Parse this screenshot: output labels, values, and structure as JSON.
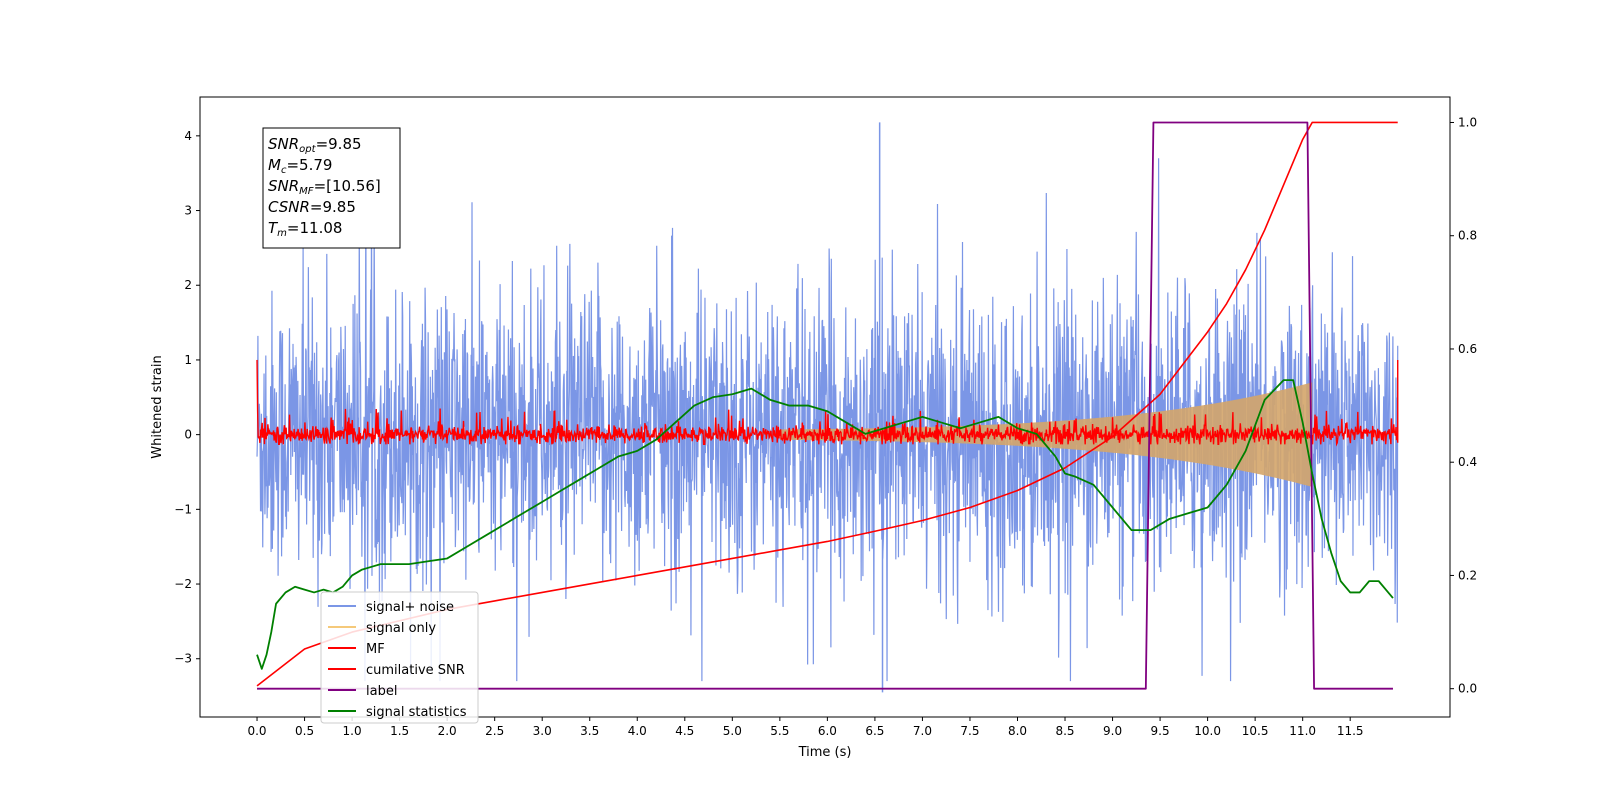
{
  "chart_data": {
    "type": "line",
    "xlabel": "Time (s)",
    "ylabel": "Whitened strain",
    "xlim": [
      -0.6,
      12.55
    ],
    "ylim": [
      -3.78,
      4.52
    ],
    "y2lim": [
      -0.05,
      1.045
    ],
    "x_ticks": [
      0.0,
      0.5,
      1.0,
      1.5,
      2.0,
      2.5,
      3.0,
      3.5,
      4.0,
      4.5,
      5.0,
      5.5,
      6.0,
      6.5,
      7.0,
      7.5,
      8.0,
      8.5,
      9.0,
      9.5,
      10.0,
      10.5,
      11.0,
      11.5
    ],
    "x_tick_labels": [
      "0.0",
      "0.5",
      "1.0",
      "1.5",
      "2.0",
      "2.5",
      "3.0",
      "3.5",
      "4.0",
      "4.5",
      "5.0",
      "5.5",
      "6.0",
      "6.5",
      "7.0",
      "7.5",
      "8.0",
      "8.5",
      "9.0",
      "9.5",
      "10.0",
      "10.5",
      "11.0",
      "11.5"
    ],
    "y_ticks": [
      -3,
      -2,
      -1,
      0,
      1,
      2,
      3,
      4
    ],
    "y_tick_labels": [
      "−3",
      "−2",
      "−1",
      "0",
      "1",
      "2",
      "3",
      "4"
    ],
    "y2_ticks": [
      0.0,
      0.2,
      0.4,
      0.6,
      0.8,
      1.0
    ],
    "y2_tick_labels": [
      "0.0",
      "0.2",
      "0.4",
      "0.6",
      "0.8",
      "1.0"
    ],
    "grid": false,
    "legend_position": "lower-left",
    "legend": [
      {
        "label": "signal+ noise",
        "color": "#7b96e6"
      },
      {
        "label": "signal only",
        "color": "#f5c97a"
      },
      {
        "label": "MF",
        "color": "#ff0000"
      },
      {
        "label": "cumilative SNR",
        "color": "#ff0000"
      },
      {
        "label": "label",
        "color": "#800080"
      },
      {
        "label": "signal statistics",
        "color": "#008000"
      }
    ],
    "annotation": {
      "lines": [
        {
          "base": "SNR",
          "sub": "opt",
          "value": "=9.85"
        },
        {
          "base": "M",
          "sub": "c",
          "value": "=5.79"
        },
        {
          "base": "SNR",
          "sub": "MF",
          "value": "=[10.56]"
        },
        {
          "base": "CSNR",
          "sub": "",
          "value": "=9.85"
        },
        {
          "base": "T",
          "sub": "m",
          "value": "=11.08"
        }
      ]
    },
    "series": [
      {
        "name": "signal+ noise",
        "axis": "left",
        "color": "#7b96e6",
        "t_range": [
          0.0,
          12.0
        ],
        "envelope": 1.4,
        "peak_extremes": [
          4.18,
          -3.45
        ]
      },
      {
        "name": "signal only",
        "axis": "left",
        "color": "#d4a56a",
        "t_range": [
          0.0,
          11.1
        ],
        "amplitude_start": 0.0,
        "amplitude_end": 0.7
      },
      {
        "name": "MF",
        "axis": "left",
        "color": "#ff0000",
        "t_range": [
          0.0,
          12.0
        ],
        "baseline": 0.0,
        "spread": 0.15,
        "edge_value": 1.0
      },
      {
        "name": "cumilative SNR",
        "axis": "right",
        "color": "#ff0000",
        "x": [
          0.0,
          0.5,
          1.0,
          1.5,
          2.0,
          2.5,
          3.0,
          3.5,
          4.0,
          4.5,
          5.0,
          5.5,
          6.0,
          6.5,
          7.0,
          7.5,
          8.0,
          8.5,
          9.0,
          9.5,
          10.0,
          10.2,
          10.4,
          10.6,
          10.8,
          11.0,
          11.1,
          11.5,
          12.0
        ],
        "y": [
          0.005,
          0.07,
          0.1,
          0.12,
          0.14,
          0.155,
          0.17,
          0.185,
          0.2,
          0.215,
          0.23,
          0.245,
          0.26,
          0.278,
          0.297,
          0.32,
          0.35,
          0.39,
          0.445,
          0.52,
          0.63,
          0.68,
          0.74,
          0.81,
          0.89,
          0.97,
          1.0,
          1.0,
          1.0
        ]
      },
      {
        "name": "label",
        "axis": "right",
        "color": "#800080",
        "x": [
          0.0,
          9.35,
          9.43,
          11.05,
          11.12,
          11.95
        ],
        "y": [
          0.0,
          0.0,
          1.0,
          1.0,
          0.0,
          0.0
        ]
      },
      {
        "name": "signal statistics",
        "axis": "right",
        "color": "#008000",
        "x": [
          0.0,
          0.05,
          0.1,
          0.15,
          0.2,
          0.3,
          0.4,
          0.5,
          0.6,
          0.7,
          0.8,
          0.9,
          1.0,
          1.1,
          1.2,
          1.3,
          1.4,
          1.5,
          1.6,
          1.8,
          2.0,
          2.2,
          2.4,
          2.6,
          2.8,
          3.0,
          3.2,
          3.4,
          3.6,
          3.8,
          4.0,
          4.2,
          4.4,
          4.6,
          4.8,
          5.0,
          5.2,
          5.4,
          5.6,
          5.8,
          6.0,
          6.2,
          6.4,
          6.6,
          6.8,
          7.0,
          7.2,
          7.4,
          7.6,
          7.8,
          8.0,
          8.2,
          8.4,
          8.5,
          8.6,
          8.8,
          9.0,
          9.2,
          9.4,
          9.6,
          9.8,
          10.0,
          10.2,
          10.4,
          10.6,
          10.8,
          10.9,
          11.0,
          11.1,
          11.2,
          11.3,
          11.4,
          11.5,
          11.6,
          11.7,
          11.8,
          11.9,
          11.95
        ],
        "y": [
          0.06,
          0.035,
          0.06,
          0.1,
          0.15,
          0.17,
          0.18,
          0.175,
          0.17,
          0.175,
          0.17,
          0.18,
          0.2,
          0.21,
          0.215,
          0.22,
          0.22,
          0.22,
          0.22,
          0.225,
          0.23,
          0.25,
          0.27,
          0.29,
          0.31,
          0.33,
          0.35,
          0.37,
          0.39,
          0.41,
          0.42,
          0.44,
          0.47,
          0.5,
          0.515,
          0.52,
          0.53,
          0.51,
          0.5,
          0.5,
          0.49,
          0.47,
          0.45,
          0.46,
          0.47,
          0.48,
          0.47,
          0.46,
          0.47,
          0.48,
          0.46,
          0.45,
          0.41,
          0.38,
          0.375,
          0.36,
          0.32,
          0.28,
          0.28,
          0.3,
          0.31,
          0.32,
          0.36,
          0.42,
          0.51,
          0.545,
          0.545,
          0.47,
          0.38,
          0.3,
          0.24,
          0.19,
          0.17,
          0.17,
          0.19,
          0.19,
          0.17,
          0.16
        ]
      }
    ]
  }
}
